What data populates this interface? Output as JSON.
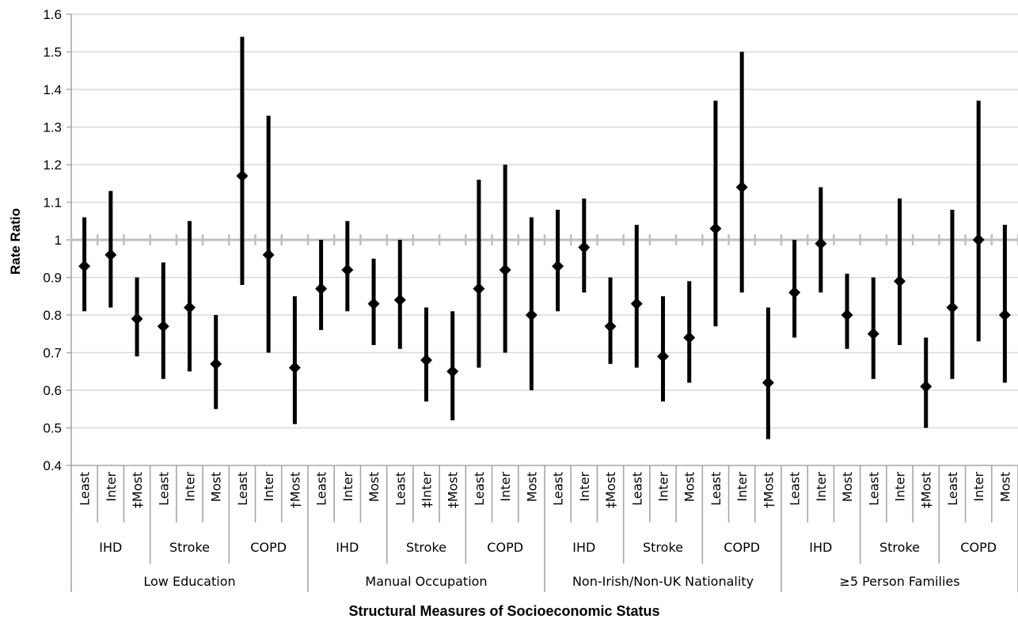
{
  "chart_data": {
    "type": "error_bar",
    "ylabel": "Rate Ratio",
    "xlabel": "Structural Measures of Socioeconomic Status",
    "ylim": [
      0.4,
      1.6
    ],
    "yticks": [
      "0.4",
      "0.5",
      "0.6",
      "0.7",
      "0.8",
      "0.9",
      "1",
      "1.1",
      "1.2",
      "1.3",
      "1.4",
      "1.5",
      "1.6"
    ],
    "reference_line": 1,
    "grid": true,
    "groups": [
      {
        "name": "Low Education",
        "subgroups": [
          {
            "name": "IHD",
            "points": [
              {
                "label": "Least",
                "value": 0.93,
                "low": 0.81,
                "high": 1.06
              },
              {
                "label": "Inter",
                "value": 0.96,
                "low": 0.82,
                "high": 1.13
              },
              {
                "label": "‡Most",
                "value": 0.79,
                "low": 0.69,
                "high": 0.9
              }
            ]
          },
          {
            "name": "Stroke",
            "points": [
              {
                "label": "Least",
                "value": 0.77,
                "low": 0.63,
                "high": 0.94
              },
              {
                "label": "Inter",
                "value": 0.82,
                "low": 0.65,
                "high": 1.05
              },
              {
                "label": "Most",
                "value": 0.67,
                "low": 0.55,
                "high": 0.8
              }
            ]
          },
          {
            "name": "COPD",
            "points": [
              {
                "label": "Least",
                "value": 1.17,
                "low": 0.88,
                "high": 1.54
              },
              {
                "label": "Inter",
                "value": 0.96,
                "low": 0.7,
                "high": 1.33
              },
              {
                "label": "†Most",
                "value": 0.66,
                "low": 0.51,
                "high": 0.85
              }
            ]
          }
        ]
      },
      {
        "name": "Manual Occupation",
        "subgroups": [
          {
            "name": "IHD",
            "points": [
              {
                "label": "Least",
                "value": 0.87,
                "low": 0.76,
                "high": 1.0
              },
              {
                "label": "Inter",
                "value": 0.92,
                "low": 0.81,
                "high": 1.05
              },
              {
                "label": "Most",
                "value": 0.83,
                "low": 0.72,
                "high": 0.95
              }
            ]
          },
          {
            "name": "Stroke",
            "points": [
              {
                "label": "Least",
                "value": 0.84,
                "low": 0.71,
                "high": 1.0
              },
              {
                "label": "‡Inter",
                "value": 0.68,
                "low": 0.57,
                "high": 0.82
              },
              {
                "label": "‡Most",
                "value": 0.65,
                "low": 0.52,
                "high": 0.81
              }
            ]
          },
          {
            "name": "COPD",
            "points": [
              {
                "label": "Least",
                "value": 0.87,
                "low": 0.66,
                "high": 1.16
              },
              {
                "label": "Inter",
                "value": 0.92,
                "low": 0.7,
                "high": 1.2
              },
              {
                "label": "Most",
                "value": 0.8,
                "low": 0.6,
                "high": 1.06
              }
            ]
          }
        ]
      },
      {
        "name": "Non-Irish/Non-UK Nationality",
        "subgroups": [
          {
            "name": "IHD",
            "points": [
              {
                "label": "Least",
                "value": 0.93,
                "low": 0.81,
                "high": 1.08
              },
              {
                "label": "Inter",
                "value": 0.98,
                "low": 0.86,
                "high": 1.11
              },
              {
                "label": "‡Most",
                "value": 0.77,
                "low": 0.67,
                "high": 0.9
              }
            ]
          },
          {
            "name": "Stroke",
            "points": [
              {
                "label": "Least",
                "value": 0.83,
                "low": 0.66,
                "high": 1.04
              },
              {
                "label": "Inter",
                "value": 0.69,
                "low": 0.57,
                "high": 0.85
              },
              {
                "label": "Most",
                "value": 0.74,
                "low": 0.62,
                "high": 0.89
              }
            ]
          },
          {
            "name": "COPD",
            "points": [
              {
                "label": "Least",
                "value": 1.03,
                "low": 0.77,
                "high": 1.37
              },
              {
                "label": "Inter",
                "value": 1.14,
                "low": 0.86,
                "high": 1.5
              },
              {
                "label": "†Most",
                "value": 0.62,
                "low": 0.47,
                "high": 0.82
              }
            ]
          }
        ]
      },
      {
        "name": "≥5 Person Families",
        "subgroups": [
          {
            "name": "IHD",
            "points": [
              {
                "label": "Least",
                "value": 0.86,
                "low": 0.74,
                "high": 1.0
              },
              {
                "label": "Inter",
                "value": 0.99,
                "low": 0.86,
                "high": 1.14
              },
              {
                "label": "Most",
                "value": 0.8,
                "low": 0.71,
                "high": 0.91
              }
            ]
          },
          {
            "name": "Stroke",
            "points": [
              {
                "label": "Least",
                "value": 0.75,
                "low": 0.63,
                "high": 0.9
              },
              {
                "label": "Inter",
                "value": 0.89,
                "low": 0.72,
                "high": 1.11
              },
              {
                "label": "‡Most",
                "value": 0.61,
                "low": 0.5,
                "high": 0.74
              }
            ]
          },
          {
            "name": "COPD",
            "points": [
              {
                "label": "Least",
                "value": 0.82,
                "low": 0.63,
                "high": 1.08
              },
              {
                "label": "Inter",
                "value": 1.0,
                "low": 0.73,
                "high": 1.37
              },
              {
                "label": "Most",
                "value": 0.8,
                "low": 0.62,
                "high": 1.04
              }
            ]
          }
        ]
      }
    ]
  }
}
